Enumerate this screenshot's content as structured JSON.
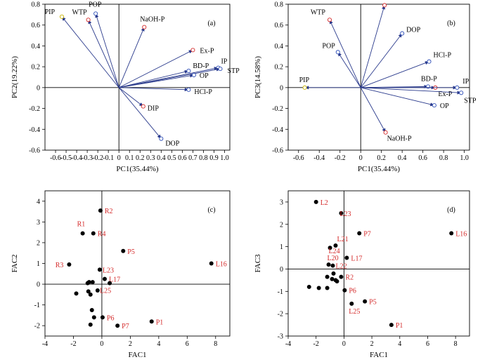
{
  "chart_data": [
    {
      "type": "scatter",
      "panel_label": "(a)",
      "xlabel": "PC1(35.44%)",
      "ylabel": "PC2(19.22%)",
      "xlim": [
        -0.7,
        1.05
      ],
      "ylim": [
        -0.6,
        0.8
      ],
      "xticks": [
        "-0.6",
        "-0.5",
        "-0.4",
        "-0.3",
        "-0.2",
        "-0.1",
        "0",
        "0.1",
        "0.2",
        "0.3",
        "0.4",
        "0.5",
        "0.6",
        "0.7",
        "0.8",
        "0.9",
        "1.0"
      ],
      "yticks": [
        "-0.6",
        "-0.4",
        "-0.2",
        "0",
        "0.2",
        "0.4",
        "0.6",
        "0.8"
      ],
      "series": [
        {
          "kind": "loading_vectors",
          "points": [
            {
              "label": "PIP",
              "x": -0.54,
              "y": 0.68,
              "color": "#c8b400"
            },
            {
              "label": "WTP",
              "x": -0.29,
              "y": 0.65,
              "color": "#d42a2a"
            },
            {
              "label": "POP",
              "x": -0.22,
              "y": 0.71,
              "color": "#3050b8"
            },
            {
              "label": "NaOH-P",
              "x": 0.24,
              "y": 0.58,
              "color": "#d42a2a"
            },
            {
              "label": "Ex-P",
              "x": 0.7,
              "y": 0.36,
              "color": "#d42a2a"
            },
            {
              "label": "IP",
              "x": 0.94,
              "y": 0.19,
              "color": "#3050b8"
            },
            {
              "label": "STP",
              "x": 0.96,
              "y": 0.18,
              "color": "#3050b8"
            },
            {
              "label": "BD-P",
              "x": 0.66,
              "y": 0.16,
              "color": "#3050b8"
            },
            {
              "label": "OP",
              "x": 0.71,
              "y": 0.12,
              "color": "#3050b8"
            },
            {
              "label": "HCl-P",
              "x": 0.66,
              "y": -0.02,
              "color": "#3050b8"
            },
            {
              "label": "DIP",
              "x": 0.23,
              "y": -0.18,
              "color": "#d42a2a"
            },
            {
              "label": "DOP",
              "x": 0.4,
              "y": -0.49,
              "color": "#3050b8"
            }
          ]
        }
      ]
    },
    {
      "type": "scatter",
      "panel_label": "(b)",
      "xlabel": "PC1(35.44%)",
      "ylabel": "PC3(14.58%)",
      "xlim": [
        -0.7,
        1.05
      ],
      "ylim": [
        -0.6,
        0.8
      ],
      "xticks": [
        "-0.6",
        "-0.4",
        "-0.2",
        "0",
        "0.2",
        "0.4",
        "0.6",
        "0.8",
        "1.0"
      ],
      "yticks": [
        "-0.6",
        "-0.4",
        "-0.2",
        "0",
        "0.2",
        "0.4",
        "0.6",
        "0.8"
      ],
      "series": [
        {
          "kind": "loading_vectors",
          "points": [
            {
              "label": "DIP",
              "x": 0.23,
              "y": 0.79,
              "color": "#d42a2a"
            },
            {
              "label": "WTP",
              "x": -0.3,
              "y": 0.65,
              "color": "#d42a2a"
            },
            {
              "label": "DOP",
              "x": 0.4,
              "y": 0.52,
              "color": "#3050b8"
            },
            {
              "label": "POP",
              "x": -0.22,
              "y": 0.34,
              "color": "#3050b8"
            },
            {
              "label": "HCl-P",
              "x": 0.66,
              "y": 0.25,
              "color": "#3050b8"
            },
            {
              "label": "PIP",
              "x": -0.54,
              "y": 0.0,
              "color": "#c8b400"
            },
            {
              "label": "BD-P",
              "x": 0.65,
              "y": 0.01,
              "color": "#3050b8"
            },
            {
              "label": "Ex-P",
              "x": 0.72,
              "y": 0.0,
              "color": "#d42a2a"
            },
            {
              "label": "IP",
              "x": 0.93,
              "y": 0.0,
              "color": "#3050b8"
            },
            {
              "label": "STP",
              "x": 0.97,
              "y": -0.05,
              "color": "#3050b8"
            },
            {
              "label": "OP",
              "x": 0.71,
              "y": -0.17,
              "color": "#3050b8"
            },
            {
              "label": "NaOH-P",
              "x": 0.24,
              "y": -0.43,
              "color": "#d42a2a"
            }
          ]
        }
      ]
    },
    {
      "type": "scatter",
      "panel_label": "(c)",
      "xlabel": "FAC1",
      "ylabel": "FAC2",
      "xlim": [
        -4,
        9
      ],
      "ylim": [
        -2.5,
        4.5
      ],
      "xticks": [
        "-4",
        "-2",
        "0",
        "2",
        "4",
        "6",
        "8"
      ],
      "yticks": [
        "-2",
        "-1",
        "0",
        "1",
        "2",
        "3",
        "4"
      ],
      "series": [
        {
          "kind": "sample_scores",
          "points": [
            {
              "label": "R2",
              "x": -0.1,
              "y": 3.55
            },
            {
              "label": "R1",
              "x": -1.35,
              "y": 2.45
            },
            {
              "label": "R4",
              "x": -0.6,
              "y": 2.45
            },
            {
              "label": "P5",
              "x": 1.5,
              "y": 1.6
            },
            {
              "label": "L16",
              "x": 7.7,
              "y": 1.0
            },
            {
              "label": "R3",
              "x": -2.3,
              "y": 0.95
            },
            {
              "label": "L23",
              "x": -0.15,
              "y": 0.7
            },
            {
              "label": "L17",
              "x": 0.2,
              "y": 0.25
            },
            {
              "label": "L25",
              "x": 0.55,
              "y": 0.05
            },
            {
              "label": "P6",
              "x": 0.05,
              "y": -1.6
            },
            {
              "label": "P7",
              "x": 1.1,
              "y": -2.0
            },
            {
              "label": "P1",
              "x": 3.5,
              "y": -1.8
            },
            {
              "label": "",
              "x": -1.8,
              "y": -0.45
            },
            {
              "label": "",
              "x": -1.0,
              "y": 0.05
            },
            {
              "label": "",
              "x": -0.9,
              "y": 0.1
            },
            {
              "label": "",
              "x": -0.65,
              "y": 0.1
            },
            {
              "label": "",
              "x": -0.95,
              "y": -0.35
            },
            {
              "label": "",
              "x": -0.8,
              "y": -0.5
            },
            {
              "label": "",
              "x": -0.3,
              "y": -0.3
            },
            {
              "label": "",
              "x": -0.7,
              "y": -1.25
            },
            {
              "label": "",
              "x": -0.55,
              "y": -1.6
            },
            {
              "label": "",
              "x": -0.8,
              "y": -1.95
            }
          ]
        }
      ]
    },
    {
      "type": "scatter",
      "panel_label": "(d)",
      "xlabel": "FAC1",
      "ylabel": "FAC3",
      "xlim": [
        -4,
        9
      ],
      "ylim": [
        -3,
        3.5
      ],
      "xticks": [
        "-4",
        "-2",
        "0",
        "2",
        "4",
        "6",
        "8"
      ],
      "yticks": [
        "-3",
        "-2",
        "-1",
        "0",
        "1",
        "2",
        "3"
      ],
      "series": [
        {
          "kind": "sample_scores",
          "points": [
            {
              "label": "L2",
              "x": -2.0,
              "y": 3.0
            },
            {
              "label": "L23",
              "x": -0.2,
              "y": 2.5
            },
            {
              "label": "P7",
              "x": 1.1,
              "y": 1.6
            },
            {
              "label": "L16",
              "x": 7.7,
              "y": 1.6
            },
            {
              "label": "L21",
              "x": -0.6,
              "y": 1.05
            },
            {
              "label": "L24",
              "x": -1.0,
              "y": 0.95
            },
            {
              "label": "L17",
              "x": 0.2,
              "y": 0.5
            },
            {
              "label": "L20",
              "x": -1.1,
              "y": 0.2
            },
            {
              "label": "L22",
              "x": -0.8,
              "y": 0.15
            },
            {
              "label": "R2",
              "x": -0.2,
              "y": -0.35
            },
            {
              "label": "P6",
              "x": 0.05,
              "y": -0.95
            },
            {
              "label": "L25",
              "x": 0.55,
              "y": -1.55
            },
            {
              "label": "P5",
              "x": 1.5,
              "y": -1.45
            },
            {
              "label": "P1",
              "x": 3.4,
              "y": -2.5
            },
            {
              "label": "",
              "x": -2.5,
              "y": -0.8
            },
            {
              "label": "",
              "x": -1.8,
              "y": -0.85
            },
            {
              "label": "",
              "x": -1.2,
              "y": -0.85
            },
            {
              "label": "",
              "x": -1.2,
              "y": -0.35
            },
            {
              "label": "",
              "x": -0.85,
              "y": -0.45
            },
            {
              "label": "",
              "x": -0.6,
              "y": -0.5
            },
            {
              "label": "",
              "x": -0.5,
              "y": -0.55
            },
            {
              "label": "",
              "x": -0.75,
              "y": -0.2
            }
          ]
        }
      ]
    }
  ]
}
